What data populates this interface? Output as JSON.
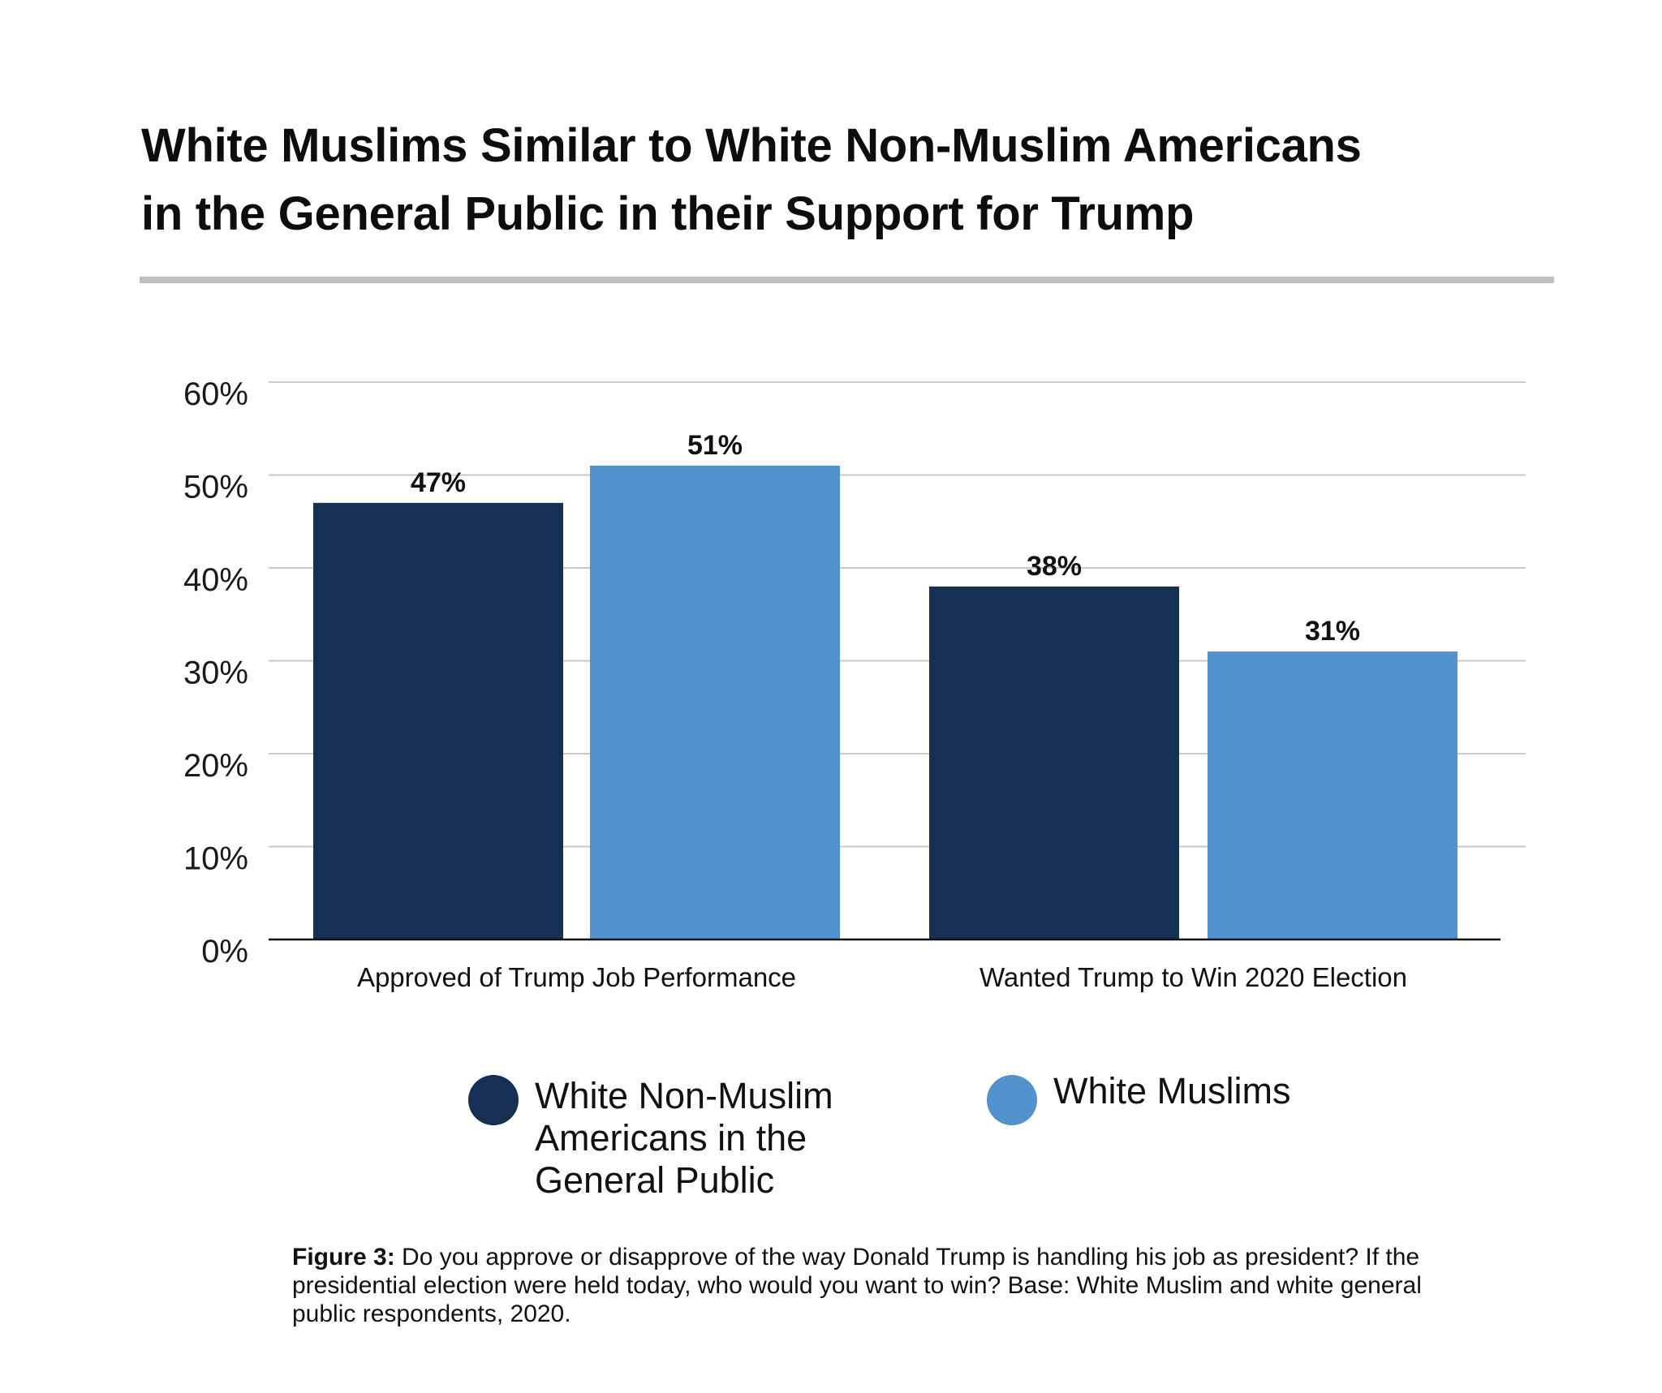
{
  "title_lines": [
    "White Muslims Similar to White Non-Muslim Americans",
    "in the General Public in their Support for Trump"
  ],
  "chart_data": {
    "type": "bar",
    "title": "White Muslims Similar to White Non-Muslim Americans in the General Public in their Support for Trump",
    "categories": [
      "Approved of Trump Job Performance",
      "Wanted Trump to Win 2020 Election"
    ],
    "series": [
      {
        "name": "White Non-Muslim Americans in the General Public",
        "color": "#152f55",
        "values": [
          47,
          38
        ],
        "labels": [
          "47%",
          "38%"
        ]
      },
      {
        "name": "White Muslims",
        "color": "#5192cc",
        "values": [
          51,
          31
        ],
        "labels": [
          "51%",
          "31%"
        ]
      }
    ],
    "ylim": [
      0,
      60
    ],
    "yticks": [
      0,
      10,
      20,
      30,
      40,
      50,
      60
    ],
    "ytick_labels": [
      "0%",
      "10%",
      "20%",
      "30%",
      "40%",
      "50%",
      "60%"
    ],
    "xlabel": "",
    "ylabel": "",
    "grid": true,
    "legend_placement": "bottom"
  },
  "legend": [
    {
      "lines": [
        "White Non-Muslim",
        "Americans in the",
        "General Public"
      ],
      "color": "#152f55"
    },
    {
      "lines": [
        "White Muslims"
      ],
      "color": "#5192cc"
    }
  ],
  "caption": {
    "label": "Figure 3:",
    "lines": [
      " Do you approve or disapprove of the way Donald Trump is handling his job as president? If the",
      "presidential election were held today, who would you want to win? Base: White Muslim and white general",
      "public respondents, 2020."
    ]
  }
}
